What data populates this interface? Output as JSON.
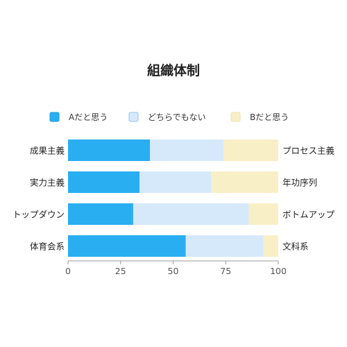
{
  "chart_data": {
    "type": "bar",
    "orientation": "horizontal",
    "stacked": true,
    "title": "組織体制",
    "categories": [
      "成果主義",
      "実力主義",
      "トップダウン",
      "体育会系"
    ],
    "right_labels": [
      "プロセス主義",
      "年功序列",
      "ボトムアップ",
      "文科系"
    ],
    "series": [
      {
        "name": "Aだと思う",
        "color": "#29aef2",
        "values": [
          39,
          34,
          31,
          56
        ]
      },
      {
        "name": "どちらでもない",
        "color": "#d6e9fb",
        "values": [
          35,
          34,
          55,
          37
        ]
      },
      {
        "name": "Bだと思う",
        "color": "#f9efc6",
        "values": [
          26,
          32,
          14,
          7
        ]
      }
    ],
    "xlim": [
      0,
      100
    ],
    "xticks": [
      0,
      25,
      50,
      75,
      100
    ],
    "xtick_labels": [
      "0",
      "25",
      "50",
      "75",
      "100"
    ],
    "grid": false,
    "legend_position": "top"
  }
}
